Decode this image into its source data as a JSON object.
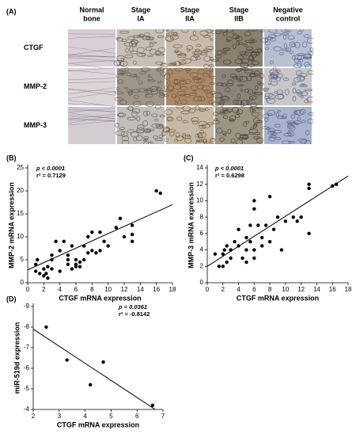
{
  "figure_a": {
    "label": "(A)",
    "columns": [
      [
        "Normal",
        "bone"
      ],
      [
        "Stage",
        "IA"
      ],
      [
        "Stage",
        "IIA"
      ],
      [
        "Stage",
        "IIB"
      ],
      [
        "Negative",
        "control"
      ]
    ],
    "rows": [
      "CTGF",
      "MMP-2",
      "MMP-3"
    ]
  },
  "chart_data": [
    {
      "type": "scatter",
      "label": "(B)",
      "x_label": "CTGF mRNA expression",
      "y_label": "MMP-2 mRNA expression",
      "annotations": [
        "p < 0.0001",
        "r² = 0.7129"
      ],
      "x": [
        1,
        1,
        1.2,
        1.5,
        2,
        2,
        2.3,
        2.5,
        2.5,
        3,
        3,
        3,
        3.5,
        4,
        4,
        4.5,
        5,
        5,
        5,
        5.5,
        5.5,
        6,
        6,
        6,
        6.5,
        6.5,
        7,
        7,
        7.5,
        7.5,
        8,
        8,
        8.5,
        9,
        9,
        9.5,
        10,
        11,
        11.5,
        12,
        13,
        13,
        13,
        16,
        16.5
      ],
      "values": [
        2.5,
        4,
        5,
        2,
        1.5,
        3,
        2,
        1,
        3.5,
        5,
        6,
        3,
        9,
        2.5,
        7,
        9,
        4,
        5,
        6,
        3,
        8,
        3.5,
        4,
        5,
        3.5,
        4.5,
        5,
        8,
        6.5,
        10,
        11,
        7,
        6.5,
        7,
        11,
        9,
        8,
        12,
        14,
        10,
        9,
        10.5,
        12.5,
        20,
        19.5
      ],
      "color": "#000000",
      "trendline": {
        "x": [
          0,
          18
        ],
        "y": [
          2.8,
          17
        ]
      },
      "xlim": [
        0,
        18
      ],
      "xticks": [
        0,
        2,
        4,
        6,
        8,
        10,
        12,
        14,
        16,
        18
      ],
      "ylim": [
        0,
        25
      ],
      "yticks": [
        0,
        5,
        10,
        15,
        20,
        25
      ]
    },
    {
      "type": "scatter",
      "label": "(C)",
      "x_label": "CTGF mRNA expression",
      "y_label": "MMP-3 mRNA expression",
      "annotations": [
        "p < 0.0001",
        "r² = 0.6298"
      ],
      "x": [
        1,
        1.5,
        2,
        2,
        2.2,
        2.5,
        2.5,
        3,
        3,
        3.5,
        4,
        4,
        4.5,
        5,
        5,
        5,
        5.5,
        5.5,
        6,
        6,
        6,
        6,
        6.5,
        7,
        7,
        7.5,
        8,
        8,
        8.5,
        9,
        9.5,
        10,
        11,
        11.5,
        12,
        13,
        13,
        13,
        16,
        16.5
      ],
      "values": [
        3.5,
        2,
        2,
        3.5,
        4,
        4.5,
        2.5,
        3,
        4,
        5,
        4.5,
        6.5,
        3,
        2.5,
        4,
        5.5,
        5,
        7,
        3,
        4,
        9,
        10,
        7,
        4.5,
        5.5,
        7,
        10.5,
        5,
        6.5,
        8,
        4,
        7.5,
        8,
        7.5,
        8,
        6,
        11.5,
        12,
        11.8,
        12
      ],
      "color": "#000000",
      "trendline": {
        "x": [
          0,
          18
        ],
        "y": [
          2,
          13
        ]
      },
      "xlim": [
        0,
        18
      ],
      "xticks": [
        0,
        2,
        4,
        6,
        8,
        10,
        12,
        14,
        16,
        18
      ],
      "ylim": [
        0,
        14
      ],
      "yticks": [
        0,
        2,
        4,
        6,
        8,
        10,
        12,
        14
      ]
    },
    {
      "type": "scatter",
      "label": "(D)",
      "x_label": "CTGF mRNA expression",
      "y_label": "miR-519d expression",
      "annotations": [
        "p = 0.0361",
        "r² = -0.8142"
      ],
      "x": [
        2.5,
        3.3,
        4.2,
        4.7,
        6.6
      ],
      "values": [
        -8,
        -6.4,
        -5.2,
        -6.3,
        -4.2
      ],
      "color": "#000000",
      "trendline": {
        "x": [
          2,
          6.7
        ],
        "y": [
          -7.9,
          -4
        ]
      },
      "xlim": [
        2,
        7
      ],
      "xticks": [
        2,
        3,
        4,
        5,
        6,
        7
      ],
      "ylim": [
        -4,
        -9
      ],
      "yticks": [
        -9,
        -8,
        -7,
        -6,
        -5,
        -4
      ]
    }
  ]
}
